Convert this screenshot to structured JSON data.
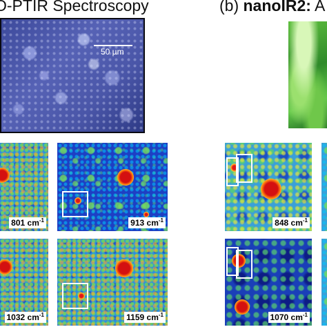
{
  "panel_a": {
    "heading_fragment": "O-PTIR Spectroscopy",
    "scale_bar_label": "50 µm",
    "maps": [
      {
        "label": "801 cm",
        "unit_exponent": "-1"
      },
      {
        "label": "913 cm",
        "unit_exponent": "-1"
      },
      {
        "label": "1032 cm",
        "unit_exponent": "-1"
      },
      {
        "label": "1159 cm",
        "unit_exponent": "-1"
      }
    ]
  },
  "panel_b": {
    "heading_prefix": "(b) ",
    "heading_bold": "nanoIR2:",
    "heading_suffix": " A",
    "maps": [
      {
        "label": "848 cm",
        "unit_exponent": "-1"
      },
      {
        "label": "1070 cm",
        "unit_exponent": "-1"
      }
    ]
  },
  "colors": {
    "map_low": "#1d3fc4",
    "map_mid": "#5ad26a",
    "map_high": "#d41010",
    "roi_box": "#ffffff"
  }
}
